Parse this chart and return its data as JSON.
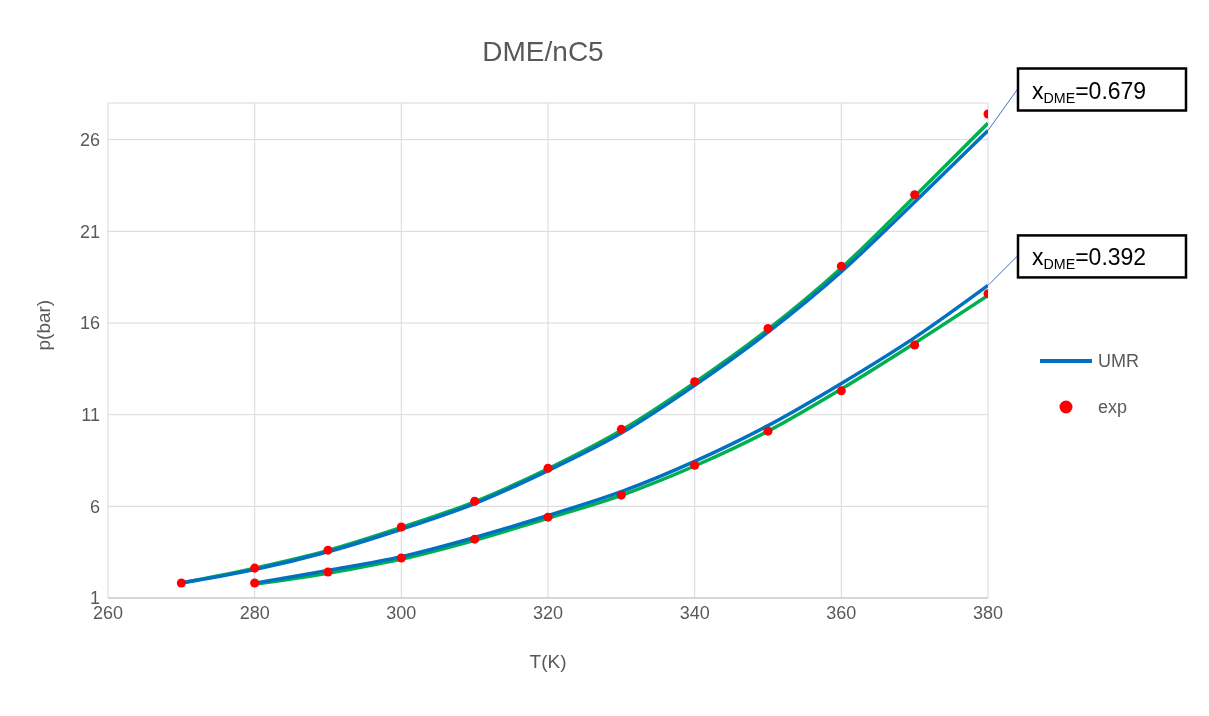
{
  "chart_data": {
    "type": "line",
    "title": "DME/nC5",
    "xlabel": "T(K)",
    "ylabel": "p(bar)",
    "xlim": [
      260,
      380
    ],
    "xticks": [
      260,
      280,
      300,
      320,
      340,
      360,
      380
    ],
    "ylim": [
      1,
      28
    ],
    "yticks": [
      1,
      6,
      11,
      16,
      21,
      26
    ],
    "grid": true,
    "legend": "right",
    "line_style": "solid",
    "series": [
      {
        "color": "#00b050",
        "x": [
          270,
          280,
          290,
          300,
          310,
          320,
          330,
          340,
          350,
          360,
          370,
          380
        ],
        "values": [
          1.82,
          2.63,
          3.6,
          4.85,
          6.25,
          8.05,
          10.15,
          12.75,
          15.65,
          19.0,
          22.9,
          26.9
        ]
      },
      {
        "color": "#00b050",
        "x": [
          280,
          290,
          300,
          310,
          320,
          330,
          340,
          350,
          360,
          370,
          380
        ],
        "values": [
          1.75,
          2.35,
          3.12,
          4.15,
          5.35,
          6.6,
          8.2,
          10.1,
          12.4,
          14.9,
          17.5
        ]
      },
      {
        "name": "UMR",
        "color": "#0070c0",
        "x": [
          270,
          280,
          290,
          300,
          310,
          320,
          330,
          340,
          350,
          360,
          370,
          380
        ],
        "values": [
          1.82,
          2.55,
          3.52,
          4.75,
          6.15,
          7.95,
          10.0,
          12.6,
          15.5,
          18.8,
          22.6,
          26.5
        ]
      },
      {
        "color": "#0070c0",
        "x": [
          280,
          290,
          300,
          310,
          320,
          330,
          340,
          350,
          360,
          370,
          380
        ],
        "values": [
          1.8,
          2.5,
          3.25,
          4.3,
          5.5,
          6.8,
          8.45,
          10.4,
          12.7,
          15.2,
          18.05
        ]
      },
      {
        "type": "scatter",
        "name": "exp",
        "color": "#ff0000",
        "marker": "circle",
        "x": [
          270,
          280,
          290,
          300,
          310,
          320,
          330,
          340,
          350,
          360,
          370,
          380
        ],
        "values": [
          1.82,
          2.63,
          3.61,
          4.87,
          6.28,
          8.08,
          10.2,
          12.8,
          15.7,
          19.1,
          23.0,
          27.4
        ]
      },
      {
        "type": "scatter",
        "color": "#ff0000",
        "marker": "circle",
        "x": [
          280,
          290,
          300,
          310,
          320,
          330,
          340,
          350,
          360,
          370,
          380
        ],
        "values": [
          1.82,
          2.42,
          3.18,
          4.21,
          5.41,
          6.61,
          8.24,
          10.1,
          12.3,
          14.8,
          17.6
        ]
      }
    ],
    "annotations": [
      {
        "text": "x$_{DME}$=0.679",
        "x": 380,
        "y": 26.5
      },
      {
        "text": "x$_{DME}$=0.392",
        "x": 380,
        "y": 18.05
      }
    ]
  }
}
